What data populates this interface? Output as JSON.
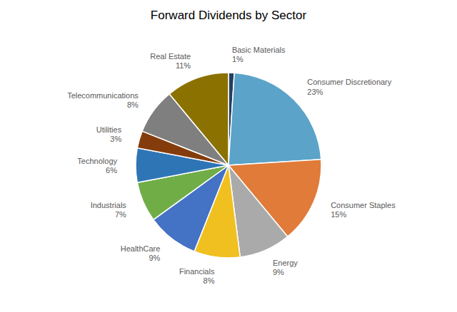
{
  "chart_data": {
    "type": "pie",
    "title": "Forward Dividends by Sector",
    "categories": [
      "Basic Materials",
      "Consumer Discretionary",
      "Consumer Staples",
      "Energy",
      "Financials",
      "HealthCare",
      "Industrials",
      "Technology",
      "Utilities",
      "Telecommunications",
      "Real Estate"
    ],
    "values": [
      1,
      23,
      15,
      9,
      8,
      9,
      7,
      6,
      3,
      8,
      11
    ],
    "value_labels": [
      "1%",
      "23%",
      "15%",
      "9%",
      "8%",
      "9%",
      "7%",
      "6%",
      "3%",
      "8%",
      "11%"
    ],
    "colors": [
      "#243F60",
      "#5BA3C9",
      "#E07B39",
      "#AAAAAA",
      "#F0C020",
      "#4472C4",
      "#70AD47",
      "#2E75B6",
      "#843C0C",
      "#7F7F7F",
      "#8B7200"
    ],
    "data_labels": true
  }
}
